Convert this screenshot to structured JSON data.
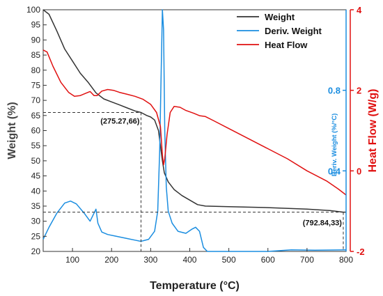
{
  "chart_data": {
    "type": "line",
    "xlabel": "Temperature (°C)",
    "xlim": [
      25,
      800
    ],
    "x_ticks": [
      100,
      200,
      300,
      400,
      500,
      600,
      700,
      800
    ],
    "axes": {
      "left": {
        "label": "Weight (%)",
        "range": [
          20,
          100
        ],
        "ticks": [
          20,
          25,
          30,
          35,
          40,
          45,
          50,
          55,
          60,
          65,
          70,
          75,
          80,
          85,
          90,
          95,
          100
        ],
        "color": "#333333"
      },
      "right_outer": {
        "label": "Heat Flow (W/g)",
        "range": [
          -2,
          4
        ],
        "ticks": [
          -2,
          0,
          2,
          4
        ],
        "color": "#e01010"
      },
      "right_inner": {
        "label": "Deriv. Weight (%/°C)",
        "ticks": [
          0.4,
          0.8
        ],
        "ticks_at_heat_flow": [
          0,
          2
        ],
        "color": "#1a8de0"
      }
    },
    "legend": {
      "position": "top-right"
    },
    "series": [
      {
        "name": "Weight",
        "axis": "left",
        "color": "#333333",
        "points": [
          [
            25,
            100
          ],
          [
            40,
            98.5
          ],
          [
            60,
            93
          ],
          [
            80,
            87
          ],
          [
            100,
            83
          ],
          [
            120,
            79
          ],
          [
            140,
            76
          ],
          [
            160,
            72.5
          ],
          [
            180,
            70.5
          ],
          [
            200,
            69.5
          ],
          [
            220,
            68.5
          ],
          [
            240,
            67.5
          ],
          [
            260,
            66.5
          ],
          [
            275.27,
            66
          ],
          [
            290,
            65
          ],
          [
            300,
            64.5
          ],
          [
            310,
            63.5
          ],
          [
            320,
            60
          ],
          [
            325,
            55
          ],
          [
            330,
            50
          ],
          [
            335,
            46
          ],
          [
            345,
            43
          ],
          [
            360,
            40.5
          ],
          [
            380,
            38.5
          ],
          [
            400,
            37
          ],
          [
            420,
            35.5
          ],
          [
            440,
            35
          ],
          [
            500,
            34.8
          ],
          [
            600,
            34.5
          ],
          [
            700,
            34
          ],
          [
            760,
            33.5
          ],
          [
            792.84,
            33
          ],
          [
            800,
            33
          ]
        ]
      },
      {
        "name": "Deriv. Weight",
        "axis": "right_outer",
        "color": "#1a8de0",
        "points": [
          [
            25,
            -1.7
          ],
          [
            40,
            -1.4
          ],
          [
            60,
            -1.05
          ],
          [
            80,
            -0.8
          ],
          [
            95,
            -0.75
          ],
          [
            110,
            -0.82
          ],
          [
            130,
            -1.05
          ],
          [
            145,
            -1.25
          ],
          [
            155,
            -1.05
          ],
          [
            160,
            -0.95
          ],
          [
            165,
            -1.3
          ],
          [
            175,
            -1.52
          ],
          [
            190,
            -1.58
          ],
          [
            210,
            -1.62
          ],
          [
            240,
            -1.68
          ],
          [
            260,
            -1.72
          ],
          [
            275,
            -1.75
          ],
          [
            295,
            -1.7
          ],
          [
            310,
            -1.5
          ],
          [
            318,
            -1.0
          ],
          [
            323,
            0.5
          ],
          [
            327,
            2.5
          ],
          [
            330,
            4.0
          ],
          [
            333,
            3.5
          ],
          [
            336,
            1.0
          ],
          [
            340,
            -0.4
          ],
          [
            345,
            -1.0
          ],
          [
            355,
            -1.3
          ],
          [
            370,
            -1.5
          ],
          [
            390,
            -1.55
          ],
          [
            405,
            -1.45
          ],
          [
            415,
            -1.4
          ],
          [
            425,
            -1.5
          ],
          [
            435,
            -1.9
          ],
          [
            445,
            -2.0
          ],
          [
            500,
            -2.0
          ],
          [
            600,
            -2.0
          ],
          [
            660,
            -1.96
          ],
          [
            720,
            -1.97
          ],
          [
            800,
            -1.96
          ]
        ]
      },
      {
        "name": "Heat Flow",
        "axis": "right_outer",
        "color": "#e01010",
        "points": [
          [
            25,
            3.0
          ],
          [
            35,
            2.95
          ],
          [
            50,
            2.6
          ],
          [
            70,
            2.2
          ],
          [
            90,
            1.95
          ],
          [
            105,
            1.85
          ],
          [
            120,
            1.87
          ],
          [
            135,
            1.93
          ],
          [
            145,
            1.97
          ],
          [
            155,
            1.87
          ],
          [
            163,
            1.87
          ],
          [
            175,
            1.98
          ],
          [
            190,
            2.02
          ],
          [
            205,
            2.0
          ],
          [
            220,
            1.95
          ],
          [
            240,
            1.9
          ],
          [
            260,
            1.85
          ],
          [
            280,
            1.78
          ],
          [
            300,
            1.65
          ],
          [
            315,
            1.45
          ],
          [
            325,
            1.1
          ],
          [
            330,
            0.4
          ],
          [
            333,
            0.15
          ],
          [
            336,
            0.3
          ],
          [
            342,
            0.9
          ],
          [
            350,
            1.45
          ],
          [
            360,
            1.6
          ],
          [
            375,
            1.58
          ],
          [
            390,
            1.5
          ],
          [
            410,
            1.43
          ],
          [
            425,
            1.37
          ],
          [
            440,
            1.35
          ],
          [
            460,
            1.25
          ],
          [
            500,
            1.05
          ],
          [
            550,
            0.8
          ],
          [
            600,
            0.55
          ],
          [
            650,
            0.3
          ],
          [
            700,
            0.0
          ],
          [
            750,
            -0.25
          ],
          [
            780,
            -0.45
          ],
          [
            800,
            -0.6
          ]
        ]
      }
    ],
    "annotations": [
      {
        "text": "(275.27,66)",
        "x": 275.27,
        "y": 66
      },
      {
        "text": "(792.84,33)",
        "x": 792.84,
        "y": 33
      }
    ],
    "grid": false
  }
}
